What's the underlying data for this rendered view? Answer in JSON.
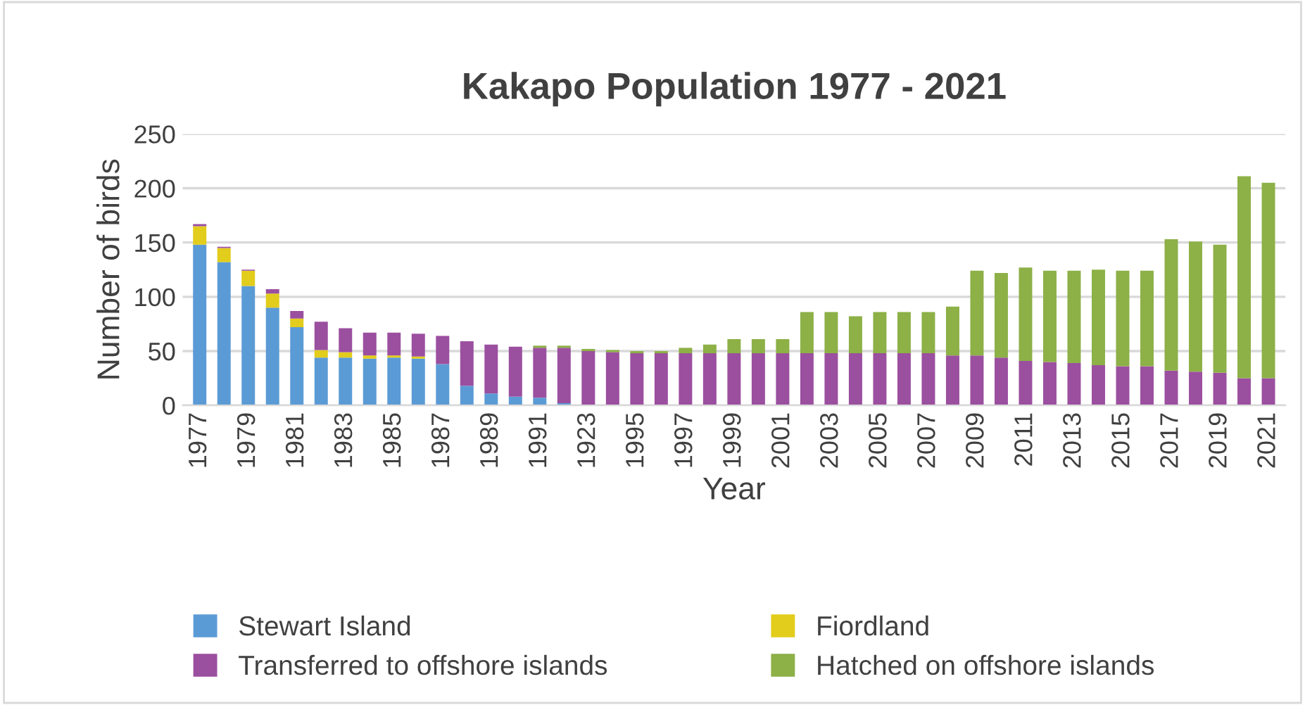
{
  "chart_data": {
    "type": "bar",
    "stacked": true,
    "title": "Kakapo Population 1977 - 2021",
    "xlabel": "Year",
    "ylabel": "Number of birds",
    "categories": [
      "1977",
      null,
      "1979",
      null,
      "1981",
      null,
      "1983",
      null,
      "1985",
      null,
      "1987",
      null,
      "1989",
      null,
      "1991",
      null,
      "1923",
      null,
      "1995",
      null,
      "1997",
      null,
      "1999",
      null,
      "2001",
      null,
      "2003",
      null,
      "2005",
      null,
      "2007",
      null,
      "2009",
      null,
      "2011",
      null,
      "2013",
      null,
      "2015",
      null,
      "2017",
      null,
      "2019",
      null,
      "2021"
    ],
    "series": [
      {
        "name": "Stewart Island",
        "color": "#5b9bd5",
        "values": [
          148,
          132,
          110,
          90,
          72,
          44,
          44,
          43,
          44,
          43,
          38,
          18,
          11,
          8,
          7,
          2,
          0,
          0,
          0,
          0,
          0,
          0,
          0,
          0,
          0,
          0,
          0,
          0,
          0,
          0,
          0,
          0,
          0,
          0,
          0,
          0,
          0,
          0,
          0,
          0,
          0,
          0,
          0,
          0,
          0
        ]
      },
      {
        "name": "Fiordland",
        "color": "#e2cc1c",
        "values": [
          17,
          13,
          14,
          13,
          8,
          7,
          5,
          3,
          2,
          2,
          0,
          0,
          0,
          0,
          0,
          0,
          0,
          0,
          0,
          0,
          0,
          0,
          0,
          0,
          0,
          0,
          0,
          0,
          0,
          0,
          0,
          0,
          0,
          0,
          0,
          0,
          0,
          0,
          0,
          0,
          0,
          0,
          0,
          0,
          0
        ]
      },
      {
        "name": "Transferred to offshore islands",
        "color": "#9b4f9f",
        "values": [
          2,
          1,
          1,
          4,
          7,
          26,
          22,
          21,
          21,
          21,
          26,
          41,
          45,
          46,
          46,
          51,
          50,
          49,
          48,
          48,
          48,
          48,
          48,
          48,
          48,
          48,
          48,
          48,
          48,
          48,
          48,
          46,
          46,
          44,
          41,
          40,
          39,
          37,
          36,
          36,
          32,
          31,
          30,
          25,
          25
        ]
      },
      {
        "name": "Hatched on offshore islands",
        "color": "#8db047",
        "values": [
          0,
          0,
          0,
          0,
          0,
          0,
          0,
          0,
          0,
          0,
          0,
          0,
          0,
          0,
          2,
          2,
          2,
          2,
          2,
          2,
          5,
          8,
          13,
          13,
          13,
          38,
          38,
          34,
          38,
          38,
          38,
          45,
          78,
          78,
          86,
          84,
          85,
          88,
          88,
          88,
          121,
          120,
          118,
          186,
          180
        ]
      }
    ],
    "ylim": [
      0,
      250
    ],
    "yticks": [
      0,
      50,
      100,
      150,
      200,
      250
    ],
    "grid": "y",
    "legend": "bottom"
  }
}
